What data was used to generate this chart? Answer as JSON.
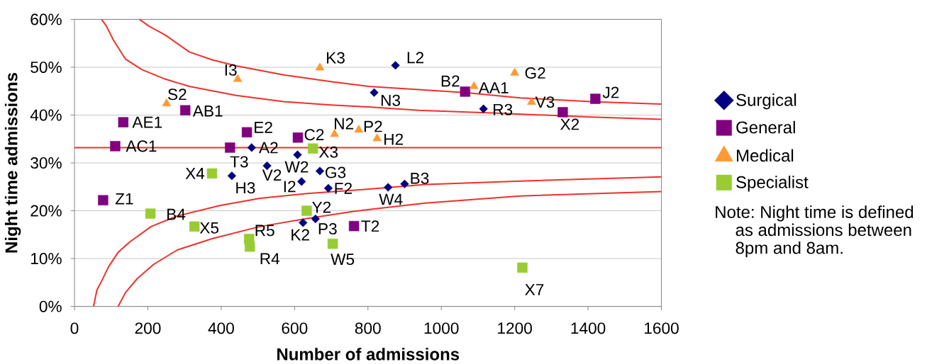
{
  "chart_data": {
    "type": "scatter",
    "xlabel": "Number of admissions",
    "ylabel": "Night time admissions",
    "xlim": [
      0,
      1600
    ],
    "xticks": [
      0,
      200,
      400,
      600,
      800,
      1000,
      1200,
      1400,
      1600
    ],
    "ylim": [
      0,
      60
    ],
    "yticks": [
      {
        "value": 0,
        "label": "0%"
      },
      {
        "value": 10,
        "label": "10%"
      },
      {
        "value": 20,
        "label": "20%"
      },
      {
        "value": 30,
        "label": "30%"
      },
      {
        "value": 40,
        "label": "40%"
      },
      {
        "value": 50,
        "label": "50%"
      },
      {
        "value": 60,
        "label": "60%"
      }
    ],
    "grid": "y",
    "legend": "right",
    "series": [
      {
        "name": "Surgical",
        "color": "#000080",
        "marker": "diamond",
        "x": [
          483,
          608,
          525,
          429,
          669,
          619,
          692,
          623,
          657,
          875,
          817,
          1115,
          855,
          900
        ],
        "values": [
          33.2,
          31.7,
          29.4,
          27.3,
          28.3,
          26.1,
          24.7,
          17.5,
          18.3,
          50.4,
          44.7,
          41.3,
          24.9,
          25.6
        ]
      },
      {
        "name": "General",
        "color": "#800080",
        "marker": "square",
        "x": [
          133,
          302,
          111,
          470,
          424,
          609,
          78,
          762,
          1065,
          1331,
          1420
        ],
        "values": [
          38.5,
          41.0,
          33.5,
          36.4,
          33.2,
          35.3,
          22.2,
          16.8,
          44.9,
          40.6,
          43.4
        ]
      },
      {
        "name": "Medical",
        "color": "#ff9933",
        "marker": "triangle",
        "x": [
          251,
          445,
          669,
          709,
          775,
          825,
          1089,
          1200,
          1246
        ],
        "values": [
          42.4,
          47.5,
          49.9,
          36.0,
          36.9,
          35.1,
          46.0,
          48.8,
          42.7
        ]
      },
      {
        "name": "Specialist",
        "color": "#99cc33",
        "marker": "square",
        "x": [
          375,
          650,
          207,
          327,
          476,
          478,
          633,
          704,
          1221
        ],
        "values": [
          27.8,
          33.0,
          19.4,
          16.7,
          14.1,
          12.5,
          20.0,
          13.1,
          8.1
        ]
      },
      {
        "type": "line",
        "color": "#f0302a",
        "x": [
          177,
          203,
          248,
          313,
          377,
          441,
          570,
          699,
          802,
          1065,
          1215,
          1408,
          1600
        ],
        "values": [
          60,
          58.6,
          56.7,
          53.2,
          51.5,
          50.3,
          48.4,
          47.0,
          46.0,
          44.7,
          43.6,
          42.8,
          42.3
        ]
      },
      {
        "type": "line",
        "color": "#f0302a",
        "x": [
          74,
          87,
          106,
          139,
          184,
          248,
          313,
          441,
          570,
          699,
          802,
          938,
          1150,
          1408,
          1600
        ],
        "values": [
          60,
          58.6,
          55.7,
          51.7,
          49.5,
          47.5,
          46.0,
          44.1,
          42.8,
          42.1,
          41.7,
          41.0,
          40.4,
          39.6,
          39.1
        ]
      },
      {
        "type": "line",
        "color": "#f0302a",
        "x": [
          52,
          61,
          74,
          93,
          119,
          151,
          209,
          280,
          396,
          506,
          635,
          764,
          957,
          1215,
          1600
        ],
        "values": [
          0,
          3.4,
          5.3,
          8.3,
          11.3,
          13.5,
          16.7,
          18.9,
          21.1,
          22.6,
          23.6,
          24.3,
          25.5,
          26.2,
          27.1
        ]
      },
      {
        "type": "line",
        "color": "#f0302a",
        "x": [
          119,
          139,
          171,
          216,
          280,
          377,
          506,
          635,
          764,
          957,
          1215,
          1600
        ],
        "values": [
          0,
          2.9,
          5.8,
          8.8,
          11.8,
          14.2,
          16.7,
          18.4,
          19.9,
          21.6,
          23.1,
          24.0
        ]
      }
    ],
    "ref_lines": [
      {
        "axis": "y",
        "value": 33.2,
        "color": "#f0302a"
      }
    ],
    "annotations": [
      {
        "text": "A2",
        "x": 483,
        "y": 33.2
      },
      {
        "text": "W2",
        "x": 608,
        "y": 31.7
      },
      {
        "text": "V2",
        "x": 525,
        "y": 29.4
      },
      {
        "text": "H3",
        "x": 429,
        "y": 27.3
      },
      {
        "text": "G3",
        "x": 669,
        "y": 28.3
      },
      {
        "text": "I2",
        "x": 619,
        "y": 26.1
      },
      {
        "text": "F2",
        "x": 692,
        "y": 24.7
      },
      {
        "text": "K2",
        "x": 623,
        "y": 17.5
      },
      {
        "text": "P3",
        "x": 657,
        "y": 18.3
      },
      {
        "text": "L2",
        "x": 875,
        "y": 50.4
      },
      {
        "text": "N3",
        "x": 817,
        "y": 44.7
      },
      {
        "text": "R3",
        "x": 1115,
        "y": 41.3
      },
      {
        "text": "W4",
        "x": 855,
        "y": 24.9
      },
      {
        "text": "B3",
        "x": 900,
        "y": 25.6
      },
      {
        "text": "AE1",
        "x": 133,
        "y": 38.5
      },
      {
        "text": "AB1",
        "x": 302,
        "y": 41.0
      },
      {
        "text": "AC1",
        "x": 111,
        "y": 33.5
      },
      {
        "text": "E2",
        "x": 470,
        "y": 36.4
      },
      {
        "text": "T3",
        "x": 424,
        "y": 33.2
      },
      {
        "text": "C2",
        "x": 609,
        "y": 35.3
      },
      {
        "text": "Z1",
        "x": 78,
        "y": 22.2
      },
      {
        "text": "T2",
        "x": 762,
        "y": 16.8
      },
      {
        "text": "B2",
        "x": 1065,
        "y": 44.9
      },
      {
        "text": "X2",
        "x": 1331,
        "y": 40.6
      },
      {
        "text": "J2",
        "x": 1420,
        "y": 43.4
      },
      {
        "text": "S2",
        "x": 251,
        "y": 42.4
      },
      {
        "text": "I3",
        "x": 445,
        "y": 47.5
      },
      {
        "text": "K3",
        "x": 669,
        "y": 49.9
      },
      {
        "text": "N2",
        "x": 709,
        "y": 36.0
      },
      {
        "text": "P2",
        "x": 775,
        "y": 36.9
      },
      {
        "text": "H2",
        "x": 825,
        "y": 35.1
      },
      {
        "text": "AA1",
        "x": 1089,
        "y": 46.0
      },
      {
        "text": "G2",
        "x": 1200,
        "y": 48.8
      },
      {
        "text": "V3",
        "x": 1246,
        "y": 42.7
      },
      {
        "text": "X4",
        "x": 375,
        "y": 27.8
      },
      {
        "text": "X3",
        "x": 650,
        "y": 33.0
      },
      {
        "text": "B4",
        "x": 207,
        "y": 19.4
      },
      {
        "text": "X5",
        "x": 327,
        "y": 16.7
      },
      {
        "text": "R5",
        "x": 476,
        "y": 14.1
      },
      {
        "text": "R4",
        "x": 478,
        "y": 12.5
      },
      {
        "text": "Y2",
        "x": 633,
        "y": 20.0
      },
      {
        "text": "W5",
        "x": 704,
        "y": 13.1
      },
      {
        "text": "X7",
        "x": 1221,
        "y": 8.1
      },
      "Note: Night time is defined as admissions between 8pm and 8am."
    ]
  }
}
